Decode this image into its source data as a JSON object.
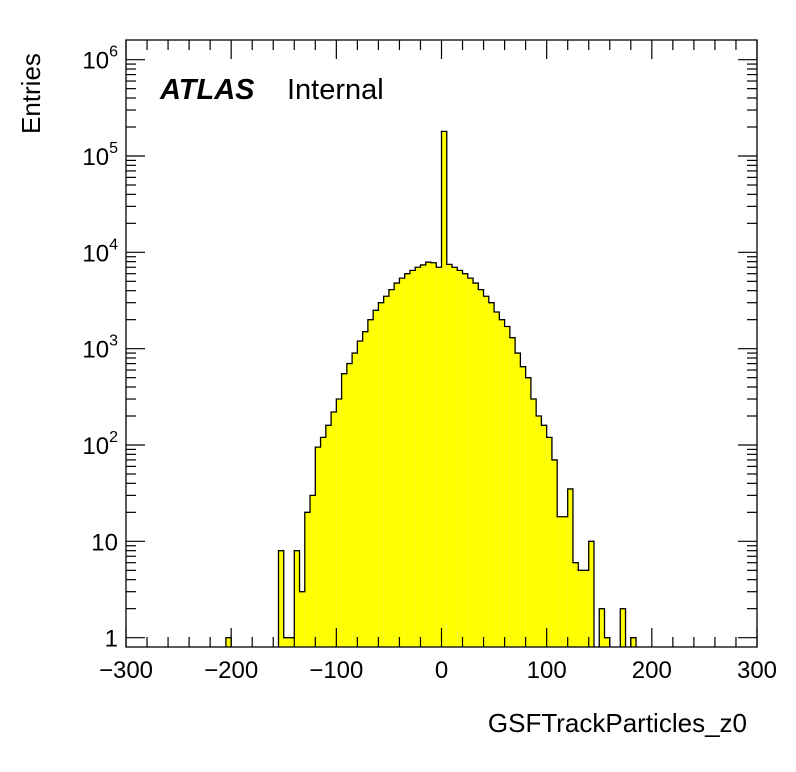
{
  "chart_data": {
    "type": "bar",
    "histogram": true,
    "experiment_label": "ATLAS",
    "status_label": "Internal",
    "xlabel": "GSFTrackParticles_z0",
    "ylabel": "Entries",
    "xlim": [
      -300,
      300
    ],
    "ylim": [
      0.8,
      1600000.0
    ],
    "y_scale": "log",
    "bin_width": 5,
    "fill_color": "#ffff00",
    "line_color": "#000000",
    "x_ticks": [
      "−300",
      "−200",
      "−100",
      "0",
      "100",
      "200",
      "300"
    ],
    "x_tick_values": [
      -300,
      -200,
      -100,
      0,
      100,
      200,
      300
    ],
    "y_ticks": [
      {
        "value": 1,
        "base": "1",
        "exp": ""
      },
      {
        "value": 10,
        "base": "10",
        "exp": ""
      },
      {
        "value": 100,
        "base": "10",
        "exp": "2"
      },
      {
        "value": 1000,
        "base": "10",
        "exp": "3"
      },
      {
        "value": 10000,
        "base": "10",
        "exp": "4"
      },
      {
        "value": 100000,
        "base": "10",
        "exp": "5"
      },
      {
        "value": 1000000,
        "base": "10",
        "exp": "6"
      }
    ],
    "bins": [
      {
        "x0": -205,
        "x1": -200,
        "count": 1
      },
      {
        "x0": -155,
        "x1": -150,
        "count": 8
      },
      {
        "x0": -150,
        "x1": -145,
        "count": 1
      },
      {
        "x0": -145,
        "x1": -140,
        "count": 1
      },
      {
        "x0": -140,
        "x1": -135,
        "count": 8
      },
      {
        "x0": -135,
        "x1": -130,
        "count": 3
      },
      {
        "x0": -130,
        "x1": -125,
        "count": 20
      },
      {
        "x0": -125,
        "x1": -120,
        "count": 30
      },
      {
        "x0": -120,
        "x1": -115,
        "count": 95
      },
      {
        "x0": -115,
        "x1": -110,
        "count": 120
      },
      {
        "x0": -110,
        "x1": -105,
        "count": 160
      },
      {
        "x0": -105,
        "x1": -100,
        "count": 220
      },
      {
        "x0": -100,
        "x1": -95,
        "count": 300
      },
      {
        "x0": -95,
        "x1": -90,
        "count": 550
      },
      {
        "x0": -90,
        "x1": -85,
        "count": 700
      },
      {
        "x0": -85,
        "x1": -80,
        "count": 900
      },
      {
        "x0": -80,
        "x1": -75,
        "count": 1200
      },
      {
        "x0": -75,
        "x1": -70,
        "count": 1500
      },
      {
        "x0": -70,
        "x1": -65,
        "count": 2000
      },
      {
        "x0": -65,
        "x1": -60,
        "count": 2500
      },
      {
        "x0": -60,
        "x1": -55,
        "count": 3000
      },
      {
        "x0": -55,
        "x1": -50,
        "count": 3500
      },
      {
        "x0": -50,
        "x1": -45,
        "count": 4100
      },
      {
        "x0": -45,
        "x1": -40,
        "count": 4800
      },
      {
        "x0": -40,
        "x1": -35,
        "count": 5400
      },
      {
        "x0": -35,
        "x1": -30,
        "count": 6000
      },
      {
        "x0": -30,
        "x1": -25,
        "count": 6500
      },
      {
        "x0": -25,
        "x1": -20,
        "count": 7000
      },
      {
        "x0": -20,
        "x1": -15,
        "count": 7400
      },
      {
        "x0": -15,
        "x1": -10,
        "count": 7900
      },
      {
        "x0": -10,
        "x1": -5,
        "count": 7800
      },
      {
        "x0": -5,
        "x1": 0,
        "count": 7000
      },
      {
        "x0": 0,
        "x1": 5,
        "count": 180000
      },
      {
        "x0": 5,
        "x1": 10,
        "count": 7500
      },
      {
        "x0": 10,
        "x1": 15,
        "count": 7000
      },
      {
        "x0": 15,
        "x1": 20,
        "count": 6500
      },
      {
        "x0": 20,
        "x1": 25,
        "count": 6000
      },
      {
        "x0": 25,
        "x1": 30,
        "count": 5400
      },
      {
        "x0": 30,
        "x1": 35,
        "count": 4800
      },
      {
        "x0": 35,
        "x1": 40,
        "count": 4100
      },
      {
        "x0": 40,
        "x1": 45,
        "count": 3500
      },
      {
        "x0": 45,
        "x1": 50,
        "count": 3000
      },
      {
        "x0": 50,
        "x1": 55,
        "count": 2400
      },
      {
        "x0": 55,
        "x1": 60,
        "count": 2000
      },
      {
        "x0": 60,
        "x1": 65,
        "count": 1700
      },
      {
        "x0": 65,
        "x1": 70,
        "count": 1300
      },
      {
        "x0": 70,
        "x1": 75,
        "count": 900
      },
      {
        "x0": 75,
        "x1": 80,
        "count": 650
      },
      {
        "x0": 80,
        "x1": 85,
        "count": 500
      },
      {
        "x0": 85,
        "x1": 90,
        "count": 300
      },
      {
        "x0": 90,
        "x1": 95,
        "count": 200
      },
      {
        "x0": 95,
        "x1": 100,
        "count": 160
      },
      {
        "x0": 100,
        "x1": 105,
        "count": 120
      },
      {
        "x0": 105,
        "x1": 110,
        "count": 70
      },
      {
        "x0": 110,
        "x1": 115,
        "count": 18
      },
      {
        "x0": 115,
        "x1": 120,
        "count": 18
      },
      {
        "x0": 120,
        "x1": 125,
        "count": 35
      },
      {
        "x0": 125,
        "x1": 130,
        "count": 6
      },
      {
        "x0": 130,
        "x1": 135,
        "count": 5
      },
      {
        "x0": 135,
        "x1": 140,
        "count": 5
      },
      {
        "x0": 140,
        "x1": 145,
        "count": 10
      },
      {
        "x0": 150,
        "x1": 155,
        "count": 2
      },
      {
        "x0": 155,
        "x1": 160,
        "count": 1
      },
      {
        "x0": 170,
        "x1": 175,
        "count": 2
      },
      {
        "x0": 180,
        "x1": 185,
        "count": 1
      }
    ]
  }
}
